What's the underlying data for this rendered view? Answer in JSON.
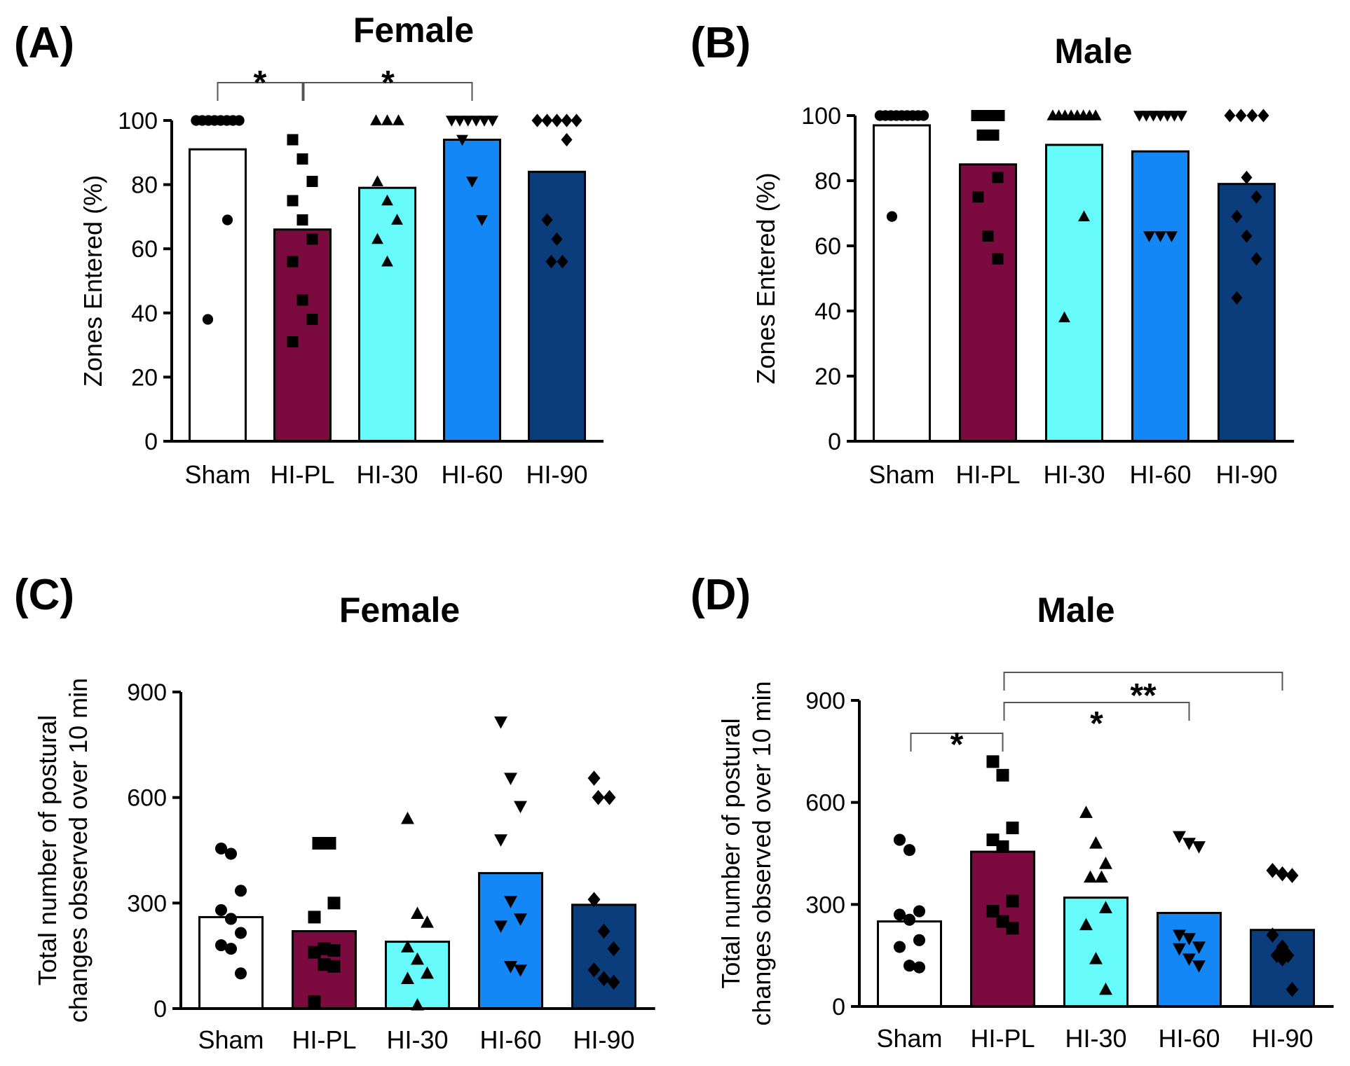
{
  "colors": {
    "Sham": "#ffffff",
    "HI-PL": "#7b0b3e",
    "HI-30": "#66fafa",
    "HI-60": "#1287f5",
    "HI-90": "#0b3d7d",
    "ink": "#000000"
  },
  "chart_data": [
    {
      "panel": "(A)",
      "type": "bar",
      "title": "Female",
      "ylabel": "Zones Entered (%)",
      "xlabel": "",
      "ylim": [
        0,
        100
      ],
      "yticks": [
        0,
        20,
        40,
        60,
        80,
        100
      ],
      "categories": [
        "Sham",
        "HI-PL",
        "HI-30",
        "HI-60",
        "HI-90"
      ],
      "values": [
        91,
        66,
        79,
        94,
        84
      ],
      "markers": [
        "circle",
        "square",
        "triangle-up",
        "triangle-down",
        "diamond"
      ],
      "points": [
        [
          100,
          100,
          100,
          100,
          100,
          100,
          100,
          100,
          69,
          38
        ],
        [
          94,
          88,
          81,
          75,
          69,
          63,
          56,
          44,
          38,
          31
        ],
        [
          100,
          100,
          100,
          81,
          75,
          69,
          63,
          56
        ],
        [
          100,
          100,
          100,
          100,
          100,
          100,
          94,
          81,
          69
        ],
        [
          100,
          100,
          100,
          100,
          100,
          94,
          69,
          63,
          56,
          56
        ]
      ],
      "significance": [
        {
          "from": "Sham",
          "to": "HI-PL",
          "label": "*"
        },
        {
          "from": "HI-PL",
          "to": "HI-60",
          "label": "*"
        }
      ]
    },
    {
      "panel": "(B)",
      "type": "bar",
      "title": "Male",
      "ylabel": "Zones Entered (%)",
      "xlabel": "",
      "ylim": [
        0,
        100
      ],
      "yticks": [
        0,
        20,
        40,
        60,
        80,
        100
      ],
      "categories": [
        "Sham",
        "HI-PL",
        "HI-30",
        "HI-60",
        "HI-90"
      ],
      "values": [
        97,
        85,
        91,
        89,
        79
      ],
      "markers": [
        "circle",
        "square",
        "triangle-up",
        "triangle-down",
        "diamond"
      ],
      "points": [
        [
          100,
          100,
          100,
          100,
          100,
          100,
          100,
          100,
          100,
          69
        ],
        [
          100,
          100,
          100,
          94,
          94,
          81,
          75,
          63,
          56
        ],
        [
          100,
          100,
          100,
          100,
          100,
          100,
          100,
          100,
          69,
          38
        ],
        [
          100,
          100,
          100,
          100,
          100,
          100,
          100,
          63,
          63,
          63
        ],
        [
          100,
          100,
          100,
          100,
          81,
          75,
          69,
          63,
          56,
          44
        ]
      ],
      "significance": []
    },
    {
      "panel": "(C)",
      "type": "bar",
      "title": "Female",
      "ylabel": "Total number of postural changes observed over 10 min",
      "ylabel_lines": [
        "Total number of postural",
        "changes observed over 10 min"
      ],
      "xlabel": "",
      "ylim": [
        0,
        900
      ],
      "yticks": [
        0,
        300,
        600,
        900
      ],
      "categories": [
        "Sham",
        "HI-PL",
        "HI-30",
        "HI-60",
        "HI-90"
      ],
      "values": [
        260,
        220,
        190,
        385,
        295
      ],
      "markers": [
        "circle",
        "square",
        "triangle-up",
        "triangle-down",
        "diamond"
      ],
      "points": [
        [
          455,
          440,
          335,
          280,
          255,
          215,
          180,
          170,
          100
        ],
        [
          470,
          470,
          300,
          260,
          170,
          165,
          160,
          125,
          120,
          20
        ],
        [
          540,
          270,
          245,
          175,
          140,
          100,
          85,
          10
        ],
        [
          815,
          655,
          575,
          480,
          305,
          255,
          235,
          120,
          110
        ],
        [
          655,
          600,
          600,
          310,
          220,
          170,
          110,
          85,
          75
        ]
      ],
      "significance": []
    },
    {
      "panel": "(D)",
      "type": "bar",
      "title": "Male",
      "ylabel": "Total number of postural changes observed over 10 min",
      "ylabel_lines": [
        "Total number of postural",
        "changes observed over 10 min"
      ],
      "xlabel": "",
      "ylim": [
        0,
        900
      ],
      "yticks": [
        0,
        300,
        600,
        900
      ],
      "categories": [
        "Sham",
        "HI-PL",
        "HI-30",
        "HI-60",
        "HI-90"
      ],
      "values": [
        250,
        455,
        320,
        275,
        225
      ],
      "markers": [
        "circle",
        "square",
        "triangle-up",
        "triangle-down",
        "diamond"
      ],
      "points": [
        [
          490,
          460,
          280,
          270,
          255,
          195,
          175,
          120,
          115
        ],
        [
          720,
          680,
          525,
          490,
          470,
          310,
          280,
          250,
          230
        ],
        [
          570,
          480,
          420,
          380,
          380,
          290,
          240,
          140,
          50
        ],
        [
          500,
          480,
          470,
          210,
          200,
          175,
          170,
          140,
          120
        ],
        [
          400,
          390,
          385,
          210,
          175,
          150,
          150,
          140,
          50
        ]
      ],
      "significance": [
        {
          "from": "Sham",
          "to": "HI-PL",
          "label": "*"
        },
        {
          "from": "HI-PL",
          "to": "HI-60",
          "label": "*"
        },
        {
          "from": "HI-PL",
          "to": "HI-90",
          "label": "**"
        }
      ]
    }
  ]
}
